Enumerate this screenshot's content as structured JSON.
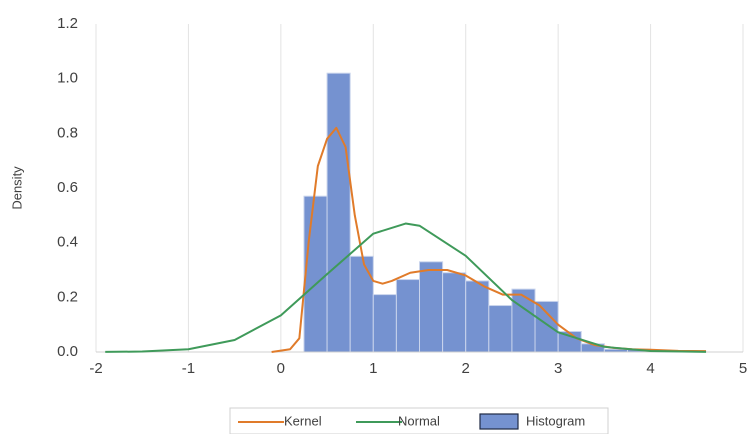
{
  "chart_data": {
    "type": "histogram",
    "y_label": "Density",
    "name": "Histogram",
    "color": "#7592d0",
    "bins": [
      0.25,
      0.5,
      0.75,
      1.0,
      1.25,
      1.5,
      1.75,
      2.0,
      2.25,
      2.5,
      2.75,
      3.0,
      3.25,
      3.5,
      3.75,
      4.0,
      4.25,
      4.5
    ],
    "values": [
      0.57,
      1.02,
      0.35,
      0.21,
      0.265,
      0.33,
      0.29,
      0.26,
      0.17,
      0.23,
      0.185,
      0.075,
      0.03,
      0.01,
      0.01,
      0.005,
      0.005
    ],
    "series": [
      {
        "name": "Kernel",
        "color": "#e07b2a",
        "x": [
          -0.1,
          0.1,
          0.2,
          0.3,
          0.4,
          0.5,
          0.6,
          0.7,
          0.8,
          0.9,
          1.0,
          1.1,
          1.2,
          1.4,
          1.6,
          1.8,
          2.0,
          2.2,
          2.4,
          2.6,
          2.8,
          3.0,
          3.2,
          3.4,
          3.6,
          3.8,
          4.0,
          4.3,
          4.6
        ],
        "values": [
          0,
          0.01,
          0.05,
          0.4,
          0.68,
          0.78,
          0.82,
          0.75,
          0.5,
          0.32,
          0.26,
          0.25,
          0.26,
          0.29,
          0.3,
          0.3,
          0.28,
          0.24,
          0.21,
          0.21,
          0.17,
          0.1,
          0.05,
          0.025,
          0.015,
          0.01,
          0.008,
          0.004,
          0.003
        ]
      },
      {
        "name": "Normal",
        "color": "#3f9a5a",
        "x": [
          -1.9,
          -1.5,
          -1.0,
          -0.5,
          0,
          0.5,
          1.0,
          1.35,
          1.5,
          2.0,
          2.5,
          3.0,
          3.5,
          4.0,
          4.6
        ],
        "values": [
          0.0003,
          0.0017,
          0.01,
          0.044,
          0.134,
          0.285,
          0.433,
          0.47,
          0.462,
          0.352,
          0.19,
          0.072,
          0.019,
          0.0036,
          0.0003
        ]
      }
    ],
    "xlim": [
      -2,
      5
    ],
    "ylim": [
      0,
      1.2
    ],
    "xticks": [
      -2,
      -1,
      0,
      1,
      2,
      3,
      4,
      5
    ],
    "yticks": [
      {
        "value": 0,
        "label": "0.0"
      },
      0.2,
      0.4,
      0.6,
      0.8,
      {
        "value": 1.0,
        "label": "1.0"
      },
      1.2
    ],
    "grid": true
  }
}
